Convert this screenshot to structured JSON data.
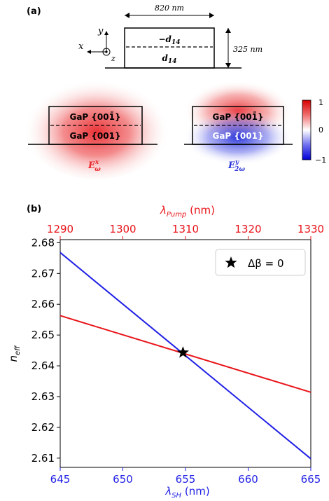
{
  "panel_a": {
    "label": "(a)",
    "width_dim": "820 nm",
    "height_dim": "325 nm",
    "axes": {
      "y": "y",
      "x": "x",
      "z": "z"
    },
    "top_layer": "−d",
    "top_layer_sub": "14",
    "bottom_layer": "d",
    "bottom_layer_sub": "14",
    "mode_left": {
      "top": "GaP {001̄}",
      "bottom": "GaP {001}",
      "field": "E",
      "field_sup": "x",
      "field_sub": "ω",
      "color": "#e8262b"
    },
    "mode_right": {
      "top": "GaP {001̄}",
      "bottom": "GaP {001}",
      "field": "E",
      "field_sup": "y",
      "field_sub": "2ω",
      "color": "#2a35d8"
    },
    "colorbar": {
      "max": "1",
      "mid": "0",
      "min": "−1",
      "colors": [
        "#e8262b",
        "#ffffff",
        "#1f2bd8"
      ]
    }
  },
  "panel_b": {
    "label": "(b)"
  },
  "chart_data": {
    "type": "line",
    "top_axis_label": "λPump (nm)",
    "top_axis_label_main": "λ",
    "top_axis_label_sub": "Pump",
    "top_axis_label_unit": " (nm)",
    "top_ticks": [
      "1290",
      "1300",
      "1310",
      "1320",
      "1330"
    ],
    "top_lim": [
      1290,
      1330
    ],
    "xlabel_main": "λ",
    "xlabel_sub": "SH",
    "xlabel_unit": " (nm)",
    "x_ticks": [
      "645",
      "650",
      "655",
      "660",
      "665"
    ],
    "xlim": [
      645,
      665
    ],
    "ylabel_main": "n",
    "ylabel_sub": "eff",
    "y_ticks": [
      "2.61",
      "2.62",
      "2.63",
      "2.64",
      "2.65",
      "2.66",
      "2.67",
      "2.68"
    ],
    "ylim": [
      2.607,
      2.681
    ],
    "series": [
      {
        "axis": "top",
        "color": "#e8141a",
        "x": [
          1290,
          1330
        ],
        "y": [
          2.6563,
          2.6314
        ]
      },
      {
        "axis": "bottom",
        "color": "#1f1fe6",
        "x": [
          645,
          665
        ],
        "y": [
          2.6768,
          2.6098
        ]
      }
    ],
    "marker": {
      "x": 654.8,
      "y": 2.6443
    },
    "legend": {
      "label": "Δβ = 0",
      "position": "top-right"
    },
    "label_color_top": "#e8141a",
    "label_color_bottom": "#1f1fe6"
  }
}
